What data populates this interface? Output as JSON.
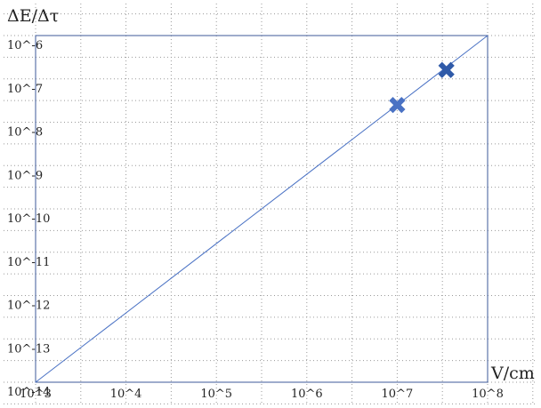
{
  "chart_data": {
    "type": "scatter",
    "title": "",
    "ylabel": "ΔE/Δτ",
    "xlabel": "V/cm",
    "x_scale": "log",
    "y_scale": "log",
    "xlim": [
      1000,
      100000000
    ],
    "ylim": [
      1e-14,
      1e-06
    ],
    "x_tick_labels": [
      "10^3",
      "10^4",
      "10^5",
      "10^6",
      "10^7",
      "10^8"
    ],
    "y_tick_labels": [
      "10^-6",
      "10^-7",
      "10^-8",
      "10^-9",
      "10^-10",
      "10^-11",
      "10^-12",
      "10^-13",
      "10^-14"
    ],
    "grid": true,
    "grid_style": "dotted",
    "line": {
      "x": [
        1000,
        100000000
      ],
      "y": [
        1e-14,
        1e-06
      ],
      "color": "#4a72c4"
    },
    "points": [
      {
        "x": 10000000,
        "y": 2.5e-08,
        "marker": "x",
        "color": "#4a72c4"
      },
      {
        "x": 35000000,
        "y": 1.6e-07,
        "marker": "x",
        "color": "#2f5aa8"
      }
    ],
    "frame_color": "#3c5a9a"
  }
}
